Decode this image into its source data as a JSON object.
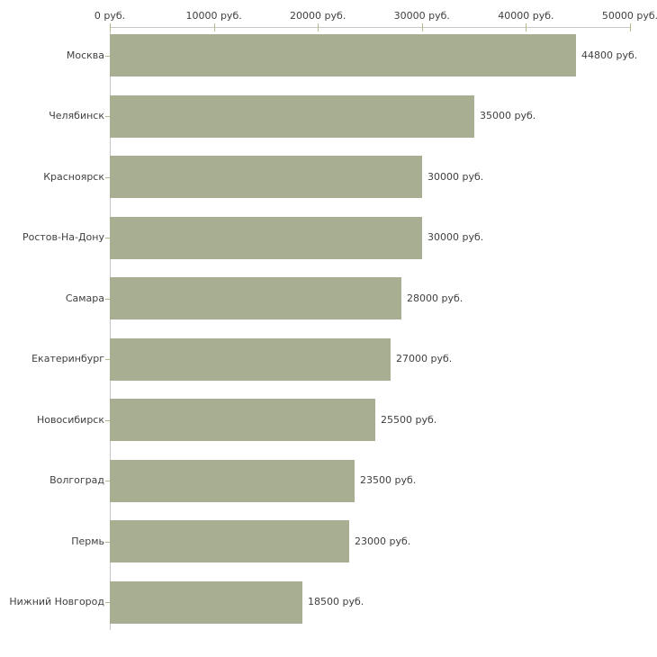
{
  "chart_data": {
    "type": "bar",
    "orientation": "horizontal",
    "title": "",
    "categories": [
      "Москва",
      "Челябинск",
      "Красноярск",
      "Ростов-На-Дону",
      "Самара",
      "Екатеринбург",
      "Новосибирск",
      "Волгоград",
      "Пермь",
      "Нижний Новгород"
    ],
    "values": [
      44800,
      35000,
      30000,
      30000,
      28000,
      27000,
      25500,
      23500,
      23000,
      18500
    ],
    "value_labels": [
      "44800 руб.",
      "35000 руб.",
      "30000 руб.",
      "30000 руб.",
      "28000 руб.",
      "27000 руб.",
      "25500 руб.",
      "23500 руб.",
      "23000 руб.",
      "18500 руб."
    ],
    "unit": "руб.",
    "x_axis": {
      "position": "top",
      "min": 0,
      "max": 50000,
      "ticks": [
        0,
        10000,
        20000,
        30000,
        40000,
        50000
      ],
      "tick_labels": [
        "0 руб.",
        "10000 руб.",
        "20000 руб.",
        "30000 руб.",
        "40000 руб.",
        "50000 руб."
      ]
    },
    "grid": false,
    "legend": false,
    "colors": {
      "bar": "#a8ae91",
      "axis_line": "#c6c6c6",
      "tick_mark": "#b7b78c",
      "text": "#3f3f3f",
      "background": "#ffffff"
    }
  }
}
